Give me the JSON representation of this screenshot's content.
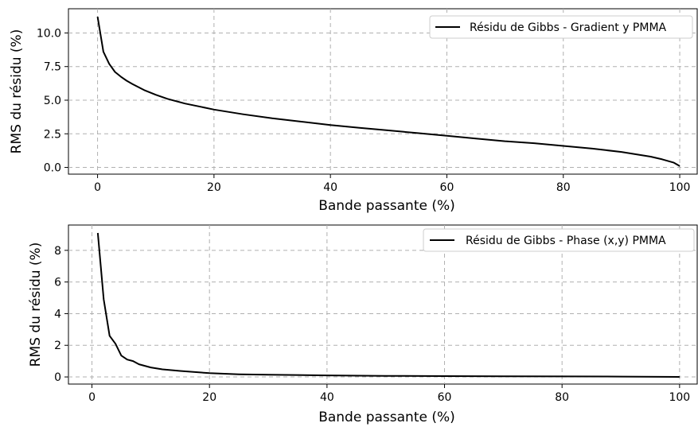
{
  "chart_data": [
    {
      "type": "line",
      "xlabel": "Bande passante (%)",
      "ylabel": "RMS du résidu (%)",
      "xlim": [
        -5,
        103
      ],
      "ylim": [
        -0.5,
        11.8
      ],
      "xticks": [
        0,
        20,
        40,
        60,
        80,
        100
      ],
      "yticks": [
        0.0,
        2.5,
        5.0,
        7.5,
        10.0
      ],
      "ytick_labels": [
        "0.0",
        "2.5",
        "5.0",
        "7.5",
        "10.0"
      ],
      "grid": true,
      "legend_position": "top-right",
      "series": [
        {
          "name": "Résidu de Gibbs - Gradient y PMMA",
          "color": "#000000",
          "x": [
            0,
            1,
            2,
            3,
            4,
            5,
            6,
            8,
            10,
            12,
            15,
            20,
            25,
            30,
            35,
            40,
            45,
            50,
            55,
            60,
            65,
            70,
            75,
            80,
            85,
            90,
            95,
            97,
            99,
            100
          ],
          "y": [
            11.2,
            8.6,
            7.7,
            7.1,
            6.75,
            6.45,
            6.2,
            5.75,
            5.4,
            5.1,
            4.75,
            4.3,
            3.95,
            3.65,
            3.4,
            3.15,
            2.95,
            2.75,
            2.55,
            2.35,
            2.15,
            1.95,
            1.8,
            1.6,
            1.4,
            1.15,
            0.8,
            0.6,
            0.35,
            0.1
          ]
        }
      ]
    },
    {
      "type": "line",
      "xlabel": "Bande passante (%)",
      "ylabel": "RMS du résidu (%)",
      "xlim": [
        -4,
        103
      ],
      "ylim": [
        -0.45,
        9.6
      ],
      "xticks": [
        0,
        20,
        40,
        60,
        80,
        100
      ],
      "yticks": [
        0,
        2,
        4,
        6,
        8
      ],
      "ytick_labels": [
        "0",
        "2",
        "4",
        "6",
        "8"
      ],
      "grid": true,
      "legend_position": "top-right",
      "series": [
        {
          "name": "Résidu de Gibbs - Phase (x,y) PMMA",
          "color": "#000000",
          "x": [
            1,
            2,
            3,
            4,
            5,
            6,
            7,
            8,
            10,
            12,
            15,
            20,
            25,
            30,
            40,
            50,
            60,
            70,
            80,
            90,
            100
          ],
          "y": [
            9.1,
            4.9,
            2.6,
            2.1,
            1.35,
            1.1,
            1.0,
            0.8,
            0.6,
            0.48,
            0.38,
            0.24,
            0.17,
            0.14,
            0.1,
            0.07,
            0.05,
            0.04,
            0.03,
            0.02,
            0.0
          ]
        }
      ]
    }
  ]
}
